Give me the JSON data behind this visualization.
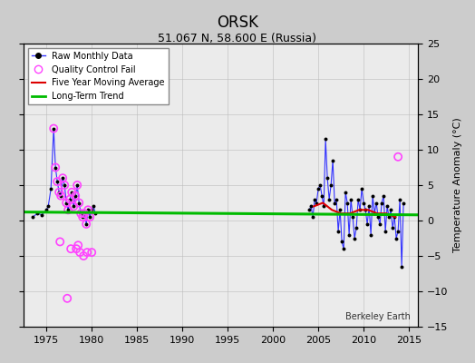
{
  "title": "ORSK",
  "subtitle": "51.067 N, 58.600 E (Russia)",
  "ylabel": "Temperature Anomaly (°C)",
  "bg_color": "#d8d8d8",
  "plot_bg_color": "#f0f0f0",
  "xlim": [
    1972.5,
    2016
  ],
  "ylim": [
    -15,
    25
  ],
  "yticks": [
    -15,
    -10,
    -5,
    0,
    5,
    10,
    15,
    20,
    25
  ],
  "xticks": [
    1975,
    1980,
    1985,
    1990,
    1995,
    2000,
    2005,
    2010,
    2015
  ],
  "early_raw_x": [
    1973.5,
    1974.0,
    1974.5,
    1975.0,
    1975.2,
    1975.5,
    1975.8,
    1976.0,
    1976.2,
    1976.4,
    1976.6,
    1976.8,
    1977.0,
    1977.2,
    1977.4,
    1977.6,
    1977.8,
    1978.0,
    1978.2,
    1978.4,
    1978.6,
    1978.8,
    1979.0,
    1979.2,
    1979.4,
    1979.6,
    1979.8,
    1980.0,
    1980.2,
    1980.4
  ],
  "early_raw_y": [
    0.5,
    1.0,
    0.8,
    1.5,
    2.0,
    4.5,
    13.0,
    7.5,
    5.5,
    4.0,
    3.5,
    6.0,
    5.0,
    2.5,
    1.5,
    3.0,
    4.0,
    2.0,
    3.5,
    5.0,
    2.5,
    1.0,
    0.5,
    1.0,
    -0.5,
    1.5,
    0.5,
    1.5,
    2.0,
    1.0
  ],
  "early_qc_x": [
    1975.8,
    1976.0,
    1976.2,
    1976.4,
    1976.6,
    1976.8,
    1977.0,
    1977.2,
    1977.4,
    1977.6,
    1977.8,
    1978.0,
    1978.2,
    1978.4,
    1978.6,
    1978.8,
    1979.0,
    1979.2,
    1979.4,
    1979.6,
    1979.8,
    1980.0,
    1978.3,
    1978.7,
    1979.1,
    1979.5,
    1977.3,
    1977.7,
    1978.5,
    1976.5
  ],
  "early_qc_y": [
    13.0,
    7.5,
    5.5,
    4.0,
    3.5,
    6.0,
    5.0,
    2.5,
    1.5,
    3.0,
    4.0,
    2.0,
    3.5,
    5.0,
    2.5,
    1.0,
    0.5,
    1.0,
    -0.5,
    1.5,
    0.5,
    -4.5,
    -4.0,
    -4.5,
    -5.0,
    -4.5,
    -11.0,
    -4.0,
    -3.5,
    -3.0
  ],
  "late_raw_x": [
    2004.0,
    2004.2,
    2004.4,
    2004.6,
    2004.8,
    2005.0,
    2005.2,
    2005.4,
    2005.6,
    2005.8,
    2006.0,
    2006.2,
    2006.4,
    2006.6,
    2006.8,
    2007.0,
    2007.2,
    2007.4,
    2007.6,
    2007.8,
    2008.0,
    2008.2,
    2008.4,
    2008.6,
    2008.8,
    2009.0,
    2009.2,
    2009.4,
    2009.6,
    2009.8,
    2010.0,
    2010.2,
    2010.4,
    2010.6,
    2010.8,
    2011.0,
    2011.2,
    2011.4,
    2011.6,
    2011.8,
    2012.0,
    2012.2,
    2012.4,
    2012.6,
    2012.8,
    2013.0,
    2013.2,
    2013.4,
    2013.6,
    2013.8,
    2014.0,
    2014.2,
    2014.4
  ],
  "late_raw_y": [
    1.5,
    2.0,
    0.5,
    3.0,
    2.5,
    4.5,
    5.0,
    3.5,
    2.0,
    11.5,
    6.0,
    3.0,
    5.0,
    8.5,
    2.5,
    3.0,
    -1.5,
    1.5,
    -3.0,
    -4.0,
    4.0,
    2.5,
    -2.0,
    3.0,
    0.5,
    -2.5,
    -1.0,
    3.0,
    1.5,
    4.5,
    2.5,
    1.5,
    -0.5,
    2.0,
    -2.0,
    3.5,
    1.0,
    2.5,
    0.5,
    -0.5,
    2.5,
    3.5,
    -1.5,
    2.0,
    0.5,
    1.5,
    -1.0,
    0.5,
    -2.5,
    -1.5,
    3.0,
    -6.5,
    2.5
  ],
  "late_qc_x": [
    2013.8
  ],
  "late_qc_y": [
    9.0
  ],
  "moving_avg_x": [
    2004.5,
    2005.5,
    2006.5,
    2007.5,
    2008.5,
    2009.5,
    2010.5,
    2011.5,
    2012.5,
    2013.5
  ],
  "moving_avg_y": [
    2.0,
    2.5,
    1.5,
    1.0,
    1.0,
    1.5,
    1.5,
    1.0,
    1.0,
    0.5
  ],
  "trend_x": [
    1972.5,
    2016
  ],
  "trend_y": [
    1.2,
    0.8
  ],
  "line_color": "#3333ff",
  "dot_color": "#000000",
  "qc_color": "#ff44ff",
  "moving_avg_color": "#dd0000",
  "trend_color": "#00bb00"
}
